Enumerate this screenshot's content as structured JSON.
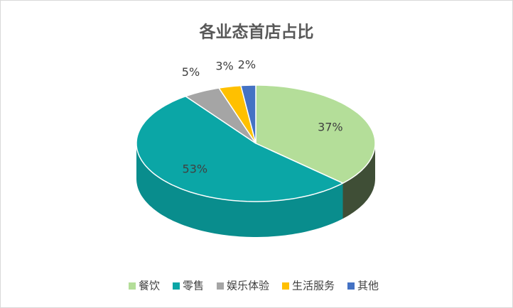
{
  "chart_data": {
    "type": "pie3d",
    "title": "各业态首店占比",
    "categories": [
      "餐饮",
      "零售",
      "娱乐体验",
      "生活服务",
      "其他"
    ],
    "values": [
      37,
      53,
      5,
      3,
      2
    ],
    "value_labels": [
      "37%",
      "53%",
      "5%",
      "3%",
      "2%"
    ],
    "colors": [
      "#b4de99",
      "#0ba6a6",
      "#a5a5a5",
      "#ffc000",
      "#4472c4"
    ],
    "legend": "bottom"
  }
}
